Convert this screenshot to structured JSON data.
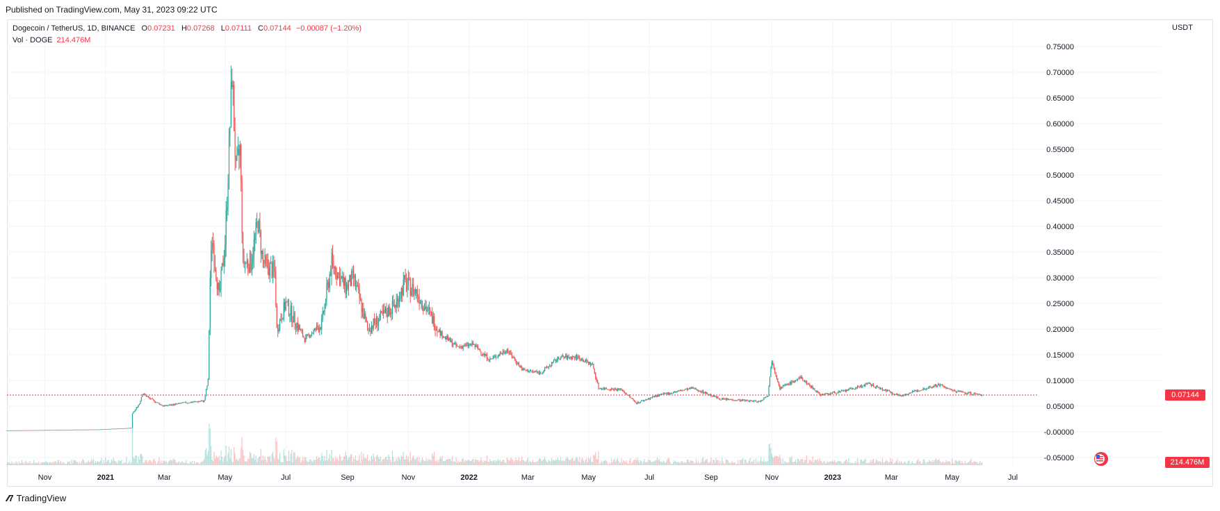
{
  "header": {
    "published": "Published on TradingView.com, May 31, 2023 09:22 UTC"
  },
  "legend": {
    "symbol": "Dogecoin / TetherUS, 1D, BINANCE",
    "o_label": "O",
    "o_value": "0.07231",
    "h_label": "H",
    "h_value": "0.07268",
    "l_label": "L",
    "l_value": "0.07111",
    "c_label": "C",
    "c_value": "0.07144",
    "change": "−0.00087 (−1.20%)",
    "vol_label": "Vol · DOGE",
    "vol_value": "214.476M"
  },
  "axis": {
    "currency": "USDT",
    "last_price_badge": "0.07144",
    "volume_badge": "214.476M"
  },
  "footer": {
    "brand": "TradingView"
  },
  "colors": {
    "up": "#26a69a",
    "down": "#ef5350",
    "badge": "#f23645",
    "grid": "#f0f3fa",
    "price_line": "#f23645"
  },
  "chart_data": {
    "type": "candlestick",
    "title": "Dogecoin / TetherUS, 1D, BINANCE",
    "y_ticks": [
      "0.75000",
      "0.70000",
      "0.65000",
      "0.60000",
      "0.55000",
      "0.50000",
      "0.45000",
      "0.40000",
      "0.35000",
      "0.30000",
      "0.25000",
      "0.20000",
      "0.15000",
      "0.10000",
      "0.05000",
      "-0.00000",
      "-0.05000"
    ],
    "y_tick_values": [
      0.75,
      0.7,
      0.65,
      0.6,
      0.55,
      0.5,
      0.45,
      0.4,
      0.35,
      0.3,
      0.25,
      0.2,
      0.15,
      0.1,
      0.05,
      0.0,
      -0.05
    ],
    "ylim": [
      -0.065,
      0.8
    ],
    "x_ticks": [
      "Nov",
      "2021",
      "Mar",
      "May",
      "Jul",
      "Sep",
      "Nov",
      "2022",
      "Mar",
      "May",
      "Jul",
      "Sep",
      "Nov",
      "2023",
      "Mar",
      "May",
      "Jul"
    ],
    "x_tick_dates": [
      "2020-11-01",
      "2021-01-01",
      "2021-03-01",
      "2021-05-01",
      "2021-07-01",
      "2021-09-01",
      "2021-11-01",
      "2022-01-01",
      "2022-03-01",
      "2022-05-01",
      "2022-07-01",
      "2022-09-01",
      "2022-11-01",
      "2023-01-01",
      "2023-03-01",
      "2023-05-01",
      "2023-07-01"
    ],
    "x_range": [
      "2020-09-24",
      "2023-07-24"
    ],
    "last_close": 0.07144,
    "anchors": [
      [
        "2020-09-24",
        0.0026
      ],
      [
        "2020-12-25",
        0.0045
      ],
      [
        "2021-01-27",
        0.0075
      ],
      [
        "2021-01-28",
        0.035
      ],
      [
        "2021-02-04",
        0.055
      ],
      [
        "2021-02-07",
        0.075
      ],
      [
        "2021-02-14",
        0.065
      ],
      [
        "2021-02-28",
        0.05
      ],
      [
        "2021-03-20",
        0.056
      ],
      [
        "2021-04-10",
        0.06
      ],
      [
        "2021-04-14",
        0.1
      ],
      [
        "2021-04-16",
        0.3
      ],
      [
        "2021-04-18",
        0.38
      ],
      [
        "2021-04-25",
        0.26
      ],
      [
        "2021-05-01",
        0.37
      ],
      [
        "2021-05-05",
        0.55
      ],
      [
        "2021-05-08",
        0.7
      ],
      [
        "2021-05-12",
        0.5
      ],
      [
        "2021-05-16",
        0.55
      ],
      [
        "2021-05-19",
        0.33
      ],
      [
        "2021-05-27",
        0.33
      ],
      [
        "2021-06-03",
        0.41
      ],
      [
        "2021-06-08",
        0.33
      ],
      [
        "2021-06-20",
        0.31
      ],
      [
        "2021-06-22",
        0.2
      ],
      [
        "2021-07-01",
        0.25
      ],
      [
        "2021-07-20",
        0.18
      ],
      [
        "2021-08-06",
        0.21
      ],
      [
        "2021-08-16",
        0.33
      ],
      [
        "2021-08-30",
        0.28
      ],
      [
        "2021-09-07",
        0.3
      ],
      [
        "2021-09-21",
        0.2
      ],
      [
        "2021-10-03",
        0.22
      ],
      [
        "2021-10-20",
        0.25
      ],
      [
        "2021-10-28",
        0.29
      ],
      [
        "2021-11-10",
        0.27
      ],
      [
        "2021-11-25",
        0.22
      ],
      [
        "2021-12-04",
        0.19
      ],
      [
        "2021-12-20",
        0.165
      ],
      [
        "2022-01-05",
        0.17
      ],
      [
        "2022-01-22",
        0.14
      ],
      [
        "2022-02-08",
        0.16
      ],
      [
        "2022-02-24",
        0.12
      ],
      [
        "2022-03-14",
        0.115
      ],
      [
        "2022-04-02",
        0.145
      ],
      [
        "2022-04-20",
        0.145
      ],
      [
        "2022-05-05",
        0.13
      ],
      [
        "2022-05-11",
        0.085
      ],
      [
        "2022-06-03",
        0.082
      ],
      [
        "2022-06-18",
        0.056
      ],
      [
        "2022-07-08",
        0.07
      ],
      [
        "2022-08-14",
        0.085
      ],
      [
        "2022-09-10",
        0.064
      ],
      [
        "2022-10-20",
        0.059
      ],
      [
        "2022-10-28",
        0.072
      ],
      [
        "2022-11-01",
        0.14
      ],
      [
        "2022-11-09",
        0.085
      ],
      [
        "2022-11-30",
        0.105
      ],
      [
        "2022-12-20",
        0.072
      ],
      [
        "2023-01-10",
        0.078
      ],
      [
        "2023-02-06",
        0.093
      ],
      [
        "2023-03-10",
        0.07
      ],
      [
        "2023-04-01",
        0.083
      ],
      [
        "2023-04-18",
        0.092
      ],
      [
        "2023-05-01",
        0.08
      ],
      [
        "2023-05-31",
        0.07144
      ]
    ]
  }
}
